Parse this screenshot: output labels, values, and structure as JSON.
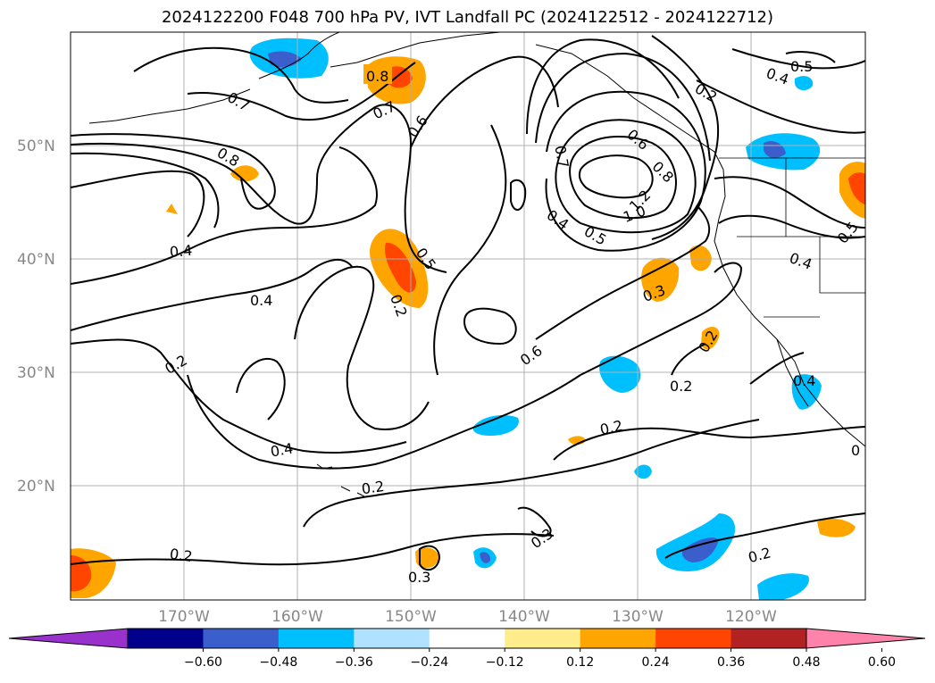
{
  "title": "2024122200 F048 700 hPa PV, IVT Landfall PC (2024122512 - 2024122712)",
  "lat_labels": [
    "50°N",
    "40°N",
    "30°N",
    "20°N"
  ],
  "lon_labels": [
    "170°W",
    "160°W",
    "150°W",
    "140°W",
    "130°W",
    "120°W"
  ],
  "colorbar": {
    "ticks": [
      "−0.60",
      "−0.48",
      "−0.36",
      "−0.24",
      "−0.12",
      "0.12",
      "0.24",
      "0.36",
      "0.48",
      "0.60"
    ],
    "colors": [
      "#9932cc",
      "#00008b",
      "#3a5fcd",
      "#00bfff",
      "#b0e2ff",
      "#ffffff",
      "#ffec8b",
      "#ffa500",
      "#ff4500",
      "#b22222",
      "#ff82ab"
    ]
  },
  "contour_labels": [
    {
      "text": "0.8"
    },
    {
      "text": "0.7"
    },
    {
      "text": "0.7"
    },
    {
      "text": "0.6"
    },
    {
      "text": "0.8"
    },
    {
      "text": "0.4"
    },
    {
      "text": "0.5"
    },
    {
      "text": "0.4"
    },
    {
      "text": "0.2"
    },
    {
      "text": "0.2"
    },
    {
      "text": "0.4"
    },
    {
      "text": "0.2"
    },
    {
      "text": "0.2"
    },
    {
      "text": "0.3"
    },
    {
      "text": "0.3"
    },
    {
      "text": "0.2"
    },
    {
      "text": "0.6"
    },
    {
      "text": "0.4"
    },
    {
      "text": "0.5"
    },
    {
      "text": "1.0"
    },
    {
      "text": "1.2"
    },
    {
      "text": "0.7"
    },
    {
      "text": "0.6"
    },
    {
      "text": "0.8"
    },
    {
      "text": "0.2"
    },
    {
      "text": "0.5"
    },
    {
      "text": "0.4"
    },
    {
      "text": "0.4"
    },
    {
      "text": "0.5"
    },
    {
      "text": "0.3"
    },
    {
      "text": "0.2"
    },
    {
      "text": "0.4"
    },
    {
      "text": "0.2"
    },
    {
      "text": "0.2"
    },
    {
      "text": "0"
    }
  ]
}
